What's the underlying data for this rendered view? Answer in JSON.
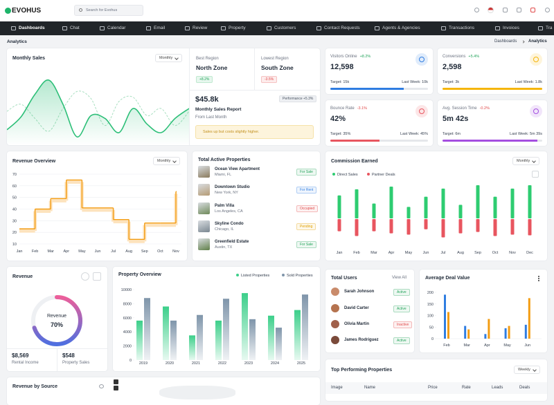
{
  "header": {
    "logo": "EVOHUS",
    "search": "Search for Evohus"
  },
  "nav": {
    "items": [
      "Dashboards",
      "Chat",
      "Calendar",
      "Email",
      "Review",
      "Property",
      "Customers",
      "Contact Requests",
      "Agents & Agencies",
      "Transactions",
      "Invoices",
      "Tra"
    ]
  },
  "breadcrumb": {
    "title": "Analytics",
    "trail": [
      "Dashboards",
      "Analytics"
    ]
  },
  "monthly_sales": {
    "title": "Monthly Sales",
    "period": "Monthly",
    "chart": {
      "type": "area",
      "series": [
        {
          "color": "#2dbf78",
          "values": [
            22,
            40,
            72,
            92,
            58,
            12,
            42,
            38,
            18,
            52,
            30,
            18,
            38,
            52
          ]
        },
        {
          "color": "#a8dfc0",
          "dashed": true,
          "values": [
            48,
            58,
            38,
            20,
            52,
            76,
            66,
            28,
            62,
            68,
            42,
            52,
            28,
            48
          ]
        }
      ]
    },
    "best_region": {
      "label": "Best Region",
      "name": "North Zone",
      "change": "+8.2%"
    },
    "lowest_region": {
      "label": "Lowest Region",
      "name": "South Zone",
      "change": "-3.5%"
    },
    "total": "$45.8k",
    "performance": "Performance +5.3%",
    "report_title": "Monthly Sales Report",
    "report_subtitle": "From Last Month",
    "note": "Sales up but costs slightly higher."
  },
  "stats": [
    {
      "label": "Visitors Online",
      "change": "+8.2%",
      "value": "12,598",
      "target": "Target: 15k",
      "last_week": "Last Week: 10k",
      "progress": 75,
      "color": "#2f7de1"
    },
    {
      "label": "Conversions",
      "change": "+5.4%",
      "value": "2,598",
      "target": "Target: 3k",
      "last_week": "Last Week: 1.8k",
      "progress": 100,
      "color": "#f5b50a"
    },
    {
      "label": "Bounce Rate",
      "change": "-3.1%",
      "value": "42%",
      "target": "Target: 35%",
      "last_week": "Last Week: 45%",
      "progress": 50,
      "color": "#e8555f"
    },
    {
      "label": "Avg. Session Time",
      "change": "-0.2%",
      "value": "5m 42s",
      "target": "Target: 6m",
      "last_week": "Last Week: 5m 39s",
      "progress": 95,
      "color": "#a44ee0"
    }
  ],
  "revenue_overview": {
    "title": "Revenue Overview",
    "period": "Monthly",
    "chart": {
      "type": "line",
      "step": true,
      "color": "#f39c12",
      "categories": [
        "Jan",
        "Feb",
        "Mar",
        "Apr",
        "May",
        "Jun",
        "Jul",
        "Aug",
        "Sep",
        "Oct",
        "Nov"
      ],
      "values": [
        23,
        40,
        49,
        65,
        41,
        41,
        31,
        14,
        28,
        28,
        55
      ],
      "ylim": [
        10,
        70
      ],
      "yticks": [
        10,
        20,
        30,
        40,
        50,
        60,
        70
      ],
      "grid": true
    }
  },
  "active_properties": {
    "title": "Total Active Properties",
    "items": [
      {
        "name": "Ocean View Apartment",
        "location": "Miami, FL",
        "status": "For Sale",
        "color": "#22a35a"
      },
      {
        "name": "Downtown Studio",
        "location": "New York, NY",
        "status": "For Rent",
        "color": "#2f7de1"
      },
      {
        "name": "Palm Villa",
        "location": "Los Angeles, CA",
        "status": "Occupied",
        "color": "#e04848"
      },
      {
        "name": "Skyline Condo",
        "location": "Chicago, IL",
        "status": "Pending",
        "color": "#e0a000"
      },
      {
        "name": "Greenfield Estate",
        "location": "Austin, TX",
        "status": "For Sale",
        "color": "#22a35a"
      }
    ]
  },
  "commission": {
    "title": "Commission Earned",
    "period": "Monthly",
    "chart": {
      "type": "bar",
      "diverging": true,
      "categories": [
        "Jan",
        "Feb",
        "Mar",
        "Apr",
        "May",
        "Jun",
        "Jul",
        "Aug",
        "Sep",
        "Oct",
        "Nov",
        "Dec"
      ],
      "series": [
        {
          "name": "Direct Sales",
          "color": "#2ecc71",
          "values": [
            34,
            43,
            22,
            47,
            17,
            32,
            44,
            20,
            49,
            32,
            44,
            49
          ]
        },
        {
          "name": "Partner Deals",
          "color": "#e8555f",
          "values": [
            18,
            25,
            18,
            21,
            23,
            15,
            27,
            21,
            19,
            25,
            23,
            24
          ]
        }
      ]
    }
  },
  "revenue": {
    "title": "Revenue",
    "chart": {
      "type": "pie",
      "center_label": "Revenue",
      "values": [
        70
      ],
      "value_labels": [
        "70%"
      ],
      "colors": [
        "#4f6fe0",
        "#ec5f9a"
      ]
    },
    "items": [
      {
        "value": "$8,569",
        "label": "Rental Income"
      },
      {
        "value": "$548",
        "label": "Property Sales"
      }
    ]
  },
  "property_overview": {
    "title": "Property Overview",
    "chart": {
      "type": "bar",
      "categories": [
        "2019",
        "2020",
        "2021",
        "2022",
        "2023",
        "2024",
        "2025"
      ],
      "series": [
        {
          "name": "Listed Properties",
          "color": "#3ccf8a",
          "values": [
            5600,
            7600,
            3500,
            5600,
            9500,
            6300,
            7100
          ]
        },
        {
          "name": "Sold Properties",
          "color": "#7f95aa",
          "values": [
            8800,
            5600,
            6400,
            8700,
            5800,
            4600,
            9300
          ]
        }
      ],
      "ylim": [
        0,
        10000
      ],
      "yticks": [
        0,
        2000,
        4000,
        6000,
        8000,
        10000
      ]
    }
  },
  "total_users": {
    "title": "Total Users",
    "action": "View All",
    "users": [
      {
        "name": "Sarah Johnson",
        "status": "Active",
        "color": "#22a35a"
      },
      {
        "name": "David Carter",
        "status": "Active",
        "color": "#22a35a"
      },
      {
        "name": "Olivia Martin",
        "status": "Inactive",
        "color": "#e04848"
      },
      {
        "name": "James Rodriguez",
        "status": "Active",
        "color": "#22a35a"
      }
    ]
  },
  "average_deal": {
    "title": "Average Deal Value",
    "chart": {
      "type": "bar",
      "categories": [
        "Feb",
        "Mar",
        "Apr",
        "May",
        "Jun"
      ],
      "series": [
        {
          "color": "#2f7de1",
          "values": [
            190,
            55,
            20,
            45,
            60
          ]
        },
        {
          "color": "#f39c12",
          "values": [
            115,
            40,
            85,
            55,
            175
          ]
        }
      ],
      "ylim": [
        0,
        200
      ],
      "yticks": [
        0,
        50,
        100,
        150,
        200
      ]
    }
  },
  "top_properties": {
    "title": "Top Performing Properties",
    "period": "Weekly",
    "columns": [
      "Image",
      "Name",
      "Price",
      "Rate",
      "Leads",
      "Deals"
    ]
  },
  "revenue_by_source": {
    "title": "Revenue by Source"
  }
}
